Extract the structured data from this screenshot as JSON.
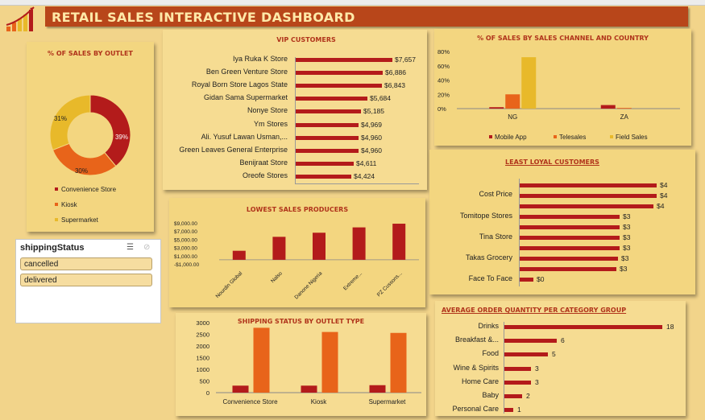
{
  "dashboard": {
    "title": "RETAIL SALES INTERACTIVE DASHBOARD"
  },
  "outlet_pie": {
    "title": "% OF SALES BY OUTLET",
    "slices": [
      {
        "name": "Convenience Store",
        "label": "39%",
        "value": 39,
        "color": "#b31b1b"
      },
      {
        "name": "Kiosk",
        "label": "30%",
        "value": 30,
        "color": "#e8641a"
      },
      {
        "name": "Supermarket",
        "label": "31%",
        "value": 31,
        "color": "#e8b92a"
      }
    ]
  },
  "vip": {
    "title": "VIP CUSTOMERS",
    "rows": [
      {
        "name": "Iya Ruka K Store",
        "label": "$7,657",
        "value": 7657
      },
      {
        "name": "Ben Green Venture Store",
        "label": "$6,886",
        "value": 6886
      },
      {
        "name": "Royal Born Store Lagos State",
        "label": "$6,843",
        "value": 6843
      },
      {
        "name": "Gidan Sama Supermarket",
        "label": "$5,684",
        "value": 5684
      },
      {
        "name": "Nonye Store",
        "label": "$5,185",
        "value": 5185
      },
      {
        "name": "Ym Stores",
        "label": "$4,969",
        "value": 4969
      },
      {
        "name": "Ali. Yusuf Lawan Usman,...",
        "label": "$4,960",
        "value": 4960
      },
      {
        "name": "Green Leaves General Enterprise",
        "label": "$4,960",
        "value": 4960
      },
      {
        "name": "Benijraat  Store",
        "label": "$4,611",
        "value": 4611
      },
      {
        "name": "Oreofe Stores",
        "label": "$4,424",
        "value": 4424
      }
    ]
  },
  "channel": {
    "title": "% OF SALES BY SALES CHANNEL AND COUNTRY",
    "ticks": [
      "80%",
      "60%",
      "40%",
      "20%",
      "0%"
    ],
    "categories": [
      "NG",
      "ZA"
    ],
    "series": [
      {
        "name": "Mobile App",
        "color": "#b31b1b",
        "values": [
          2,
          5
        ]
      },
      {
        "name": "Telesales",
        "color": "#e8641a",
        "values": [
          20,
          1
        ]
      },
      {
        "name": "Field Sales",
        "color": "#e8b92a",
        "values": [
          72,
          0
        ]
      }
    ]
  },
  "least_loyal": {
    "title": "LEAST LOYAL CUSTOMERS",
    "labels": [
      "Cost Price",
      "Tomitope Stores",
      "Tina Store",
      "Takas Grocery",
      "Face To Face"
    ],
    "bars": [
      {
        "label": "$4",
        "value": 4.1
      },
      {
        "label": "$4",
        "value": 4.1
      },
      {
        "label": "$4",
        "value": 4.0
      },
      {
        "label": "$3",
        "value": 3.0
      },
      {
        "label": "$3",
        "value": 3.0
      },
      {
        "label": "$3",
        "value": 3.0
      },
      {
        "label": "$3",
        "value": 3.0
      },
      {
        "label": "$3",
        "value": 2.95
      },
      {
        "label": "$3",
        "value": 2.9
      },
      {
        "label": "$0",
        "value": 0.4
      }
    ]
  },
  "lowest": {
    "title": "LOWEST SALES PRODUCERS",
    "ticks": [
      "$9,000.00",
      "$7,000.00",
      "$5,000.00",
      "$3,000.00",
      "$1,000.00",
      "-$1,000.00"
    ],
    "categories": [
      "Nourdin Global",
      "Nalso",
      "Danone Nigeria",
      "Extreme...",
      "PZ Cussons..."
    ],
    "values": [
      2200,
      5600,
      6600,
      7900,
      8800
    ]
  },
  "avg_qty": {
    "title": "AVERAGE ORDER QUANTITY PER CATEGORY GROUP",
    "rows": [
      {
        "name": "Drinks",
        "label": "18",
        "value": 18
      },
      {
        "name": "Breakfast &...",
        "label": "6",
        "value": 6
      },
      {
        "name": "Food",
        "label": "5",
        "value": 5
      },
      {
        "name": "Wine & Spirits",
        "label": "3",
        "value": 3
      },
      {
        "name": "Home Care",
        "label": "3",
        "value": 3
      },
      {
        "name": "Baby",
        "label": "2",
        "value": 2
      },
      {
        "name": "Personal Care",
        "label": "1",
        "value": 1
      }
    ]
  },
  "shipping": {
    "title": "SHIPPING  STATUS BY OUTLET TYPE",
    "ticks": [
      "3000",
      "2500",
      "2000",
      "1500",
      "1000",
      "500",
      "0"
    ],
    "categories": [
      "Convenience Store",
      "Kiosk",
      "Supermarket"
    ],
    "series": [
      {
        "name": "cancelled",
        "color": "#b31b1b",
        "values": [
          300,
          300,
          320
        ]
      },
      {
        "name": "delivered",
        "color": "#e8641a",
        "values": [
          2780,
          2600,
          2560
        ]
      }
    ]
  },
  "slicer": {
    "header": "shippingStatus",
    "items": [
      "cancelled",
      "delivered"
    ]
  }
}
